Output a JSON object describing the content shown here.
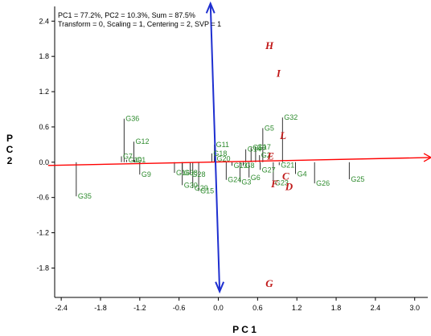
{
  "colors": {
    "genotype": "#2e8b2e",
    "genotype_stem": "#000000",
    "environment": "#c01818",
    "pc1_axis_line": "#ff0000",
    "pc2_axis_line": "#1e2fd0"
  },
  "chart_data": {
    "type": "scatter",
    "title": "",
    "info_lines": [
      "PC1 = 77.2%, PC2 = 10.3%, Sum = 87.5%",
      "Transform = 0, Scaling = 1, Centering = 2, SVP = 1"
    ],
    "xlabel": "P C 1",
    "ylabel": "P\nC\n2",
    "xlim": [
      -2.5,
      3.2
    ],
    "ylim": [
      -2.3,
      2.65
    ],
    "xticks": [
      -2.4,
      -1.8,
      -1.2,
      -0.6,
      0.0,
      0.6,
      1.2,
      1.8,
      2.4,
      3.0
    ],
    "xtick_labels": [
      "-2.4",
      "-1.8",
      "-1.2",
      "-0.6",
      "0.0",
      "0.6",
      "1.2",
      "1.8",
      "2.4",
      "3.0"
    ],
    "yticks": [
      -1.8,
      -1.2,
      -0.6,
      0.0,
      0.6,
      1.2,
      1.8,
      2.4
    ],
    "ytick_labels": [
      "-1.8",
      "-1.2",
      "-0.6",
      "0.0",
      "0.6",
      "1.2",
      "1.8",
      "2.4"
    ],
    "grid": false,
    "pc1_axis_line": {
      "x": [
        -2.6,
        3.25
      ],
      "y": [
        -0.055,
        0.08
      ]
    },
    "pc2_axis_line": {
      "x": [
        -0.12,
        0.02
      ],
      "y": [
        2.7,
        -2.2
      ]
    },
    "genotypes": [
      {
        "name": "G36",
        "x": -1.44,
        "y": 0.74
      },
      {
        "name": "G12",
        "x": -1.29,
        "y": 0.35
      },
      {
        "name": "G7",
        "x": -1.48,
        "y": 0.1
      },
      {
        "name": "G10",
        "x": -1.4,
        "y": 0.04
      },
      {
        "name": "G1",
        "x": -1.28,
        "y": 0.04
      },
      {
        "name": "G9",
        "x": -1.2,
        "y": -0.21
      },
      {
        "name": "G35",
        "x": -2.17,
        "y": -0.58
      },
      {
        "name": "G16",
        "x": -0.67,
        "y": -0.18
      },
      {
        "name": "G38",
        "x": -0.55,
        "y": -0.18
      },
      {
        "name": "G28",
        "x": -0.43,
        "y": -0.21
      },
      {
        "name": "G30",
        "x": -0.55,
        "y": -0.39
      },
      {
        "name": "G29",
        "x": -0.39,
        "y": -0.44
      },
      {
        "name": "G15",
        "x": -0.3,
        "y": -0.49
      },
      {
        "name": "G11",
        "x": -0.06,
        "y": 0.3
      },
      {
        "name": "G18",
        "x": -0.1,
        "y": 0.15
      },
      {
        "name": "G20",
        "x": -0.05,
        "y": 0.06
      },
      {
        "name": "G24",
        "x": 0.12,
        "y": -0.3
      },
      {
        "name": "G3",
        "x": 0.33,
        "y": -0.34
      },
      {
        "name": "G13",
        "x": 0.21,
        "y": -0.06
      },
      {
        "name": "G8",
        "x": 0.38,
        "y": -0.06
      },
      {
        "name": "G6",
        "x": 0.47,
        "y": -0.26
      },
      {
        "name": "G27",
        "x": 0.64,
        "y": -0.13
      },
      {
        "name": "G23",
        "x": 0.84,
        "y": -0.35
      },
      {
        "name": "G21",
        "x": 0.93,
        "y": -0.05
      },
      {
        "name": "G14",
        "x": 0.42,
        "y": 0.22
      },
      {
        "name": "G19",
        "x": 0.5,
        "y": 0.25
      },
      {
        "name": "G17",
        "x": 0.57,
        "y": 0.26
      },
      {
        "name": "G2",
        "x": 0.63,
        "y": 0.12
      },
      {
        "name": "G5",
        "x": 0.68,
        "y": 0.58
      },
      {
        "name": "G32",
        "x": 0.98,
        "y": 0.76
      },
      {
        "name": "G4",
        "x": 1.18,
        "y": -0.2
      },
      {
        "name": "G26",
        "x": 1.47,
        "y": -0.36
      },
      {
        "name": "G25",
        "x": 2.0,
        "y": -0.29
      }
    ],
    "environments": [
      {
        "name": "H",
        "x": 0.78,
        "y": 1.98
      },
      {
        "name": "I",
        "x": 0.92,
        "y": 1.51
      },
      {
        "name": "L",
        "x": 0.99,
        "y": 0.45
      },
      {
        "name": "E",
        "x": 0.8,
        "y": 0.1
      },
      {
        "name": "C",
        "x": 1.03,
        "y": -0.24
      },
      {
        "name": "F",
        "x": 0.86,
        "y": -0.37
      },
      {
        "name": "D",
        "x": 1.08,
        "y": -0.42
      },
      {
        "name": "G",
        "x": 0.78,
        "y": -2.07
      }
    ]
  }
}
